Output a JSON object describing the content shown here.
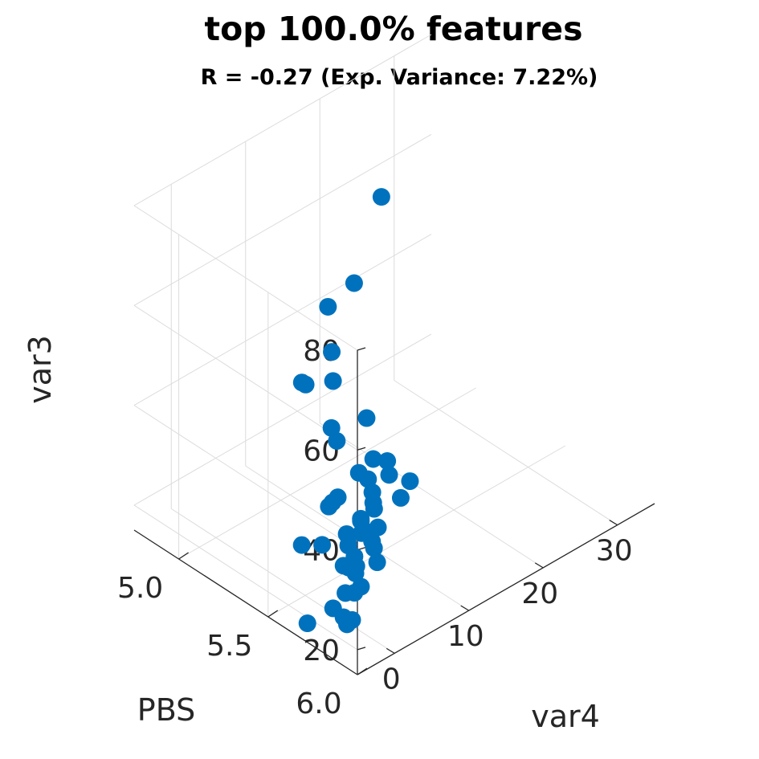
{
  "chart_data": {
    "type": "scatter",
    "title": "top 100.0% features",
    "subtitle": "R = -0.27 (Exp. Variance: 7.22%)",
    "xlabel": "var4",
    "ylabel": "PBS",
    "zlabel": "var3",
    "x_ticks": [
      "0",
      "10",
      "20",
      "30"
    ],
    "y_ticks": [
      "5.0",
      "5.5",
      "6.0"
    ],
    "z_ticks": [
      "20",
      "40",
      "60",
      "80"
    ],
    "xlim": [
      -5,
      35
    ],
    "ylim": [
      4.75,
      6.0
    ],
    "zlim": [
      15,
      80
    ],
    "grid": true,
    "marker_color": "#0072BD",
    "points": [
      {
        "x": 6.1,
        "y": 5.52,
        "z": 72.8
      },
      {
        "x": 26.6,
        "y": 4.82,
        "z": 56.3
      },
      {
        "x": 14.6,
        "y": 5.02,
        "z": 49.2
      },
      {
        "x": 4.7,
        "y": 5.46,
        "z": 53.0
      },
      {
        "x": 8.2,
        "y": 5.14,
        "z": 42.3
      },
      {
        "x": 12.8,
        "y": 4.97,
        "z": 34.0
      },
      {
        "x": -0.8,
        "y": 5.68,
        "z": 53.4
      },
      {
        "x": -0.8,
        "y": 5.71,
        "z": 51.5
      },
      {
        "x": 1.9,
        "y": 5.88,
        "z": 49.1
      },
      {
        "x": 7.3,
        "y": 5.54,
        "z": 45.2
      },
      {
        "x": 5.3,
        "y": 5.66,
        "z": 41.5
      },
      {
        "x": 4.8,
        "y": 5.77,
        "z": 41.3
      },
      {
        "x": 4.0,
        "y": 5.92,
        "z": 44.2
      },
      {
        "x": -1.2,
        "y": 5.85,
        "z": 48.7
      },
      {
        "x": -0.2,
        "y": 5.86,
        "z": 46.8
      },
      {
        "x": -2.0,
        "y": 5.99,
        "z": 41.7
      },
      {
        "x": -4.3,
        "y": 5.99,
        "z": 45.4
      },
      {
        "x": -3.7,
        "y": 5.98,
        "z": 42.4
      },
      {
        "x": 5.4,
        "y": 5.81,
        "z": 37.1
      },
      {
        "x": 2.9,
        "y": 5.76,
        "z": 37.1
      },
      {
        "x": 2.3,
        "y": 5.79,
        "z": 37.1
      },
      {
        "x": 0.1,
        "y": 5.87,
        "z": 34.3
      },
      {
        "x": -2.6,
        "y": 5.84,
        "z": 37.4
      },
      {
        "x": 0.6,
        "y": 5.86,
        "z": 32.3
      },
      {
        "x": 1.0,
        "y": 5.77,
        "z": 35.3
      },
      {
        "x": 1.3,
        "y": 5.76,
        "z": 32.4
      },
      {
        "x": -2.1,
        "y": 5.99,
        "z": 34.8
      },
      {
        "x": -5.0,
        "y": 5.95,
        "z": 35.3
      },
      {
        "x": -4.9,
        "y": 5.99,
        "z": 36.4
      },
      {
        "x": -3.8,
        "y": 5.97,
        "z": 30.9
      },
      {
        "x": -3.5,
        "y": 5.86,
        "z": 32.3
      },
      {
        "x": -1.9,
        "y": 5.86,
        "z": 29.4
      },
      {
        "x": 5.1,
        "y": 5.47,
        "z": 29.6
      },
      {
        "x": 13.6,
        "y": 5.31,
        "z": 19.6
      },
      {
        "x": 8.7,
        "y": 5.29,
        "z": 21.3
      },
      {
        "x": 6.3,
        "y": 5.37,
        "z": 24.4
      },
      {
        "x": 3.9,
        "y": 5.58,
        "z": 23.7
      },
      {
        "x": 2.9,
        "y": 5.62,
        "z": 25.3
      },
      {
        "x": 2.3,
        "y": 5.68,
        "z": 25.0
      },
      {
        "x": -0.6,
        "y": 5.8,
        "z": 23.0
      },
      {
        "x": -4.0,
        "y": 5.9,
        "z": 21.9
      },
      {
        "x": -2.1,
        "y": 5.85,
        "z": 20.0
      },
      {
        "x": 0.6,
        "y": 5.7,
        "z": 19.6
      },
      {
        "x": -1.3,
        "y": 5.71,
        "z": 18.4
      },
      {
        "x": -1.1,
        "y": 5.76,
        "z": 17.6
      },
      {
        "x": -5.0,
        "y": 5.72,
        "z": 18.8
      },
      {
        "x": 5.4,
        "y": 5.37,
        "z": 17.5
      },
      {
        "x": 5.3,
        "y": 5.26,
        "z": 15.0
      },
      {
        "x": 21.6,
        "y": 4.75,
        "z": 27.9
      }
    ]
  }
}
